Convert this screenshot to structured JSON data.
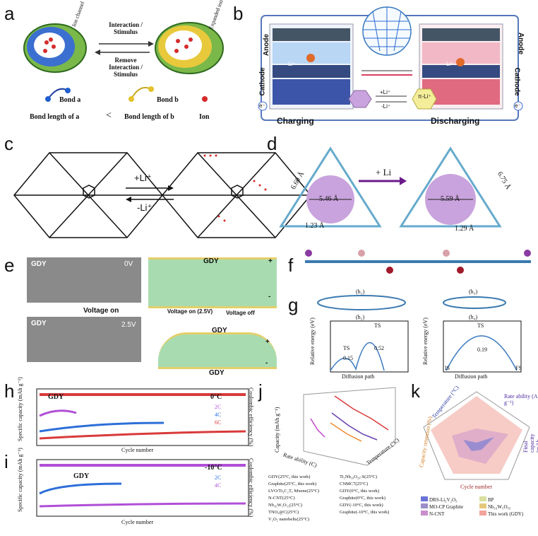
{
  "panels": {
    "a": "a",
    "b": "b",
    "c": "c",
    "d": "d",
    "e": "e",
    "f": "f",
    "g": "g",
    "h": "h",
    "i": "i",
    "j": "j",
    "k": "k"
  },
  "panel_a": {
    "ion_channel": "Ion channel",
    "expanded_channel": "Expanded ion channel",
    "forward_label": "Interaction / Stimulus",
    "reverse_label": "Remove Interaction / Stimulus",
    "bond_a": "Bond a",
    "bond_b": "Bond b",
    "bond_len_a": "Bond length of a",
    "less_than": "<",
    "bond_len_b": "Bond length of b",
    "ion": "Ion"
  },
  "panel_b": {
    "anode_left": "Anode",
    "cathode_left": "Cathode",
    "anode_right": "Anode",
    "cathode_right": "Cathode",
    "li_left": "Li⁺",
    "li_right": "Li⁺",
    "charging": "Charging",
    "discharging": "Discharging",
    "plus_li": "+Li⁺",
    "minus_li": "-Li⁺",
    "pi_li": "π-Li⁺",
    "electron": "e⁻"
  },
  "panel_c": {
    "plus": "+Li⁺",
    "minus": "-Li⁺"
  },
  "panel_d": {
    "left_pore": "5.46 Å",
    "left_edge": "6.60 Å",
    "left_bond": "1.23 Å",
    "arrow": "+ Li",
    "right_pore": "5.59 Å",
    "right_edge": "6.75 Å",
    "right_bond": "1.29 Å"
  },
  "panel_e": {
    "gdy_top": "GDY",
    "v0": "0V",
    "voltage_on": "Voltage on",
    "gdy_bottom": "GDY",
    "v25": "2.5V",
    "gdy_sch_top": "GDY",
    "plus": "+",
    "minus": "-",
    "von": "Voltage on (2.5V)",
    "voff": "Voltage off",
    "gdy_sch_b1": "GDY",
    "gdy_sch_b2": "GDY",
    "plus2": "+",
    "minus2": "-"
  },
  "panel_g": {
    "h1": "(h₁)",
    "h2": "(h₂)",
    "h3": "(h₃)",
    "h4": "(h₄)",
    "ylabel": "Relative energy (eV)",
    "xlabel": "Diffusion path",
    "ts": "TS",
    "ts2": "TS",
    "ts3": "TS",
    "v1": "0.15",
    "v2": "0.52",
    "v3": "0.19",
    "is": "IS",
    "fs": "FS"
  },
  "panel_h": {
    "ylabel": "Specific capacity (mAh g⁻¹)",
    "y2label": "Coulombic efficiency (%)",
    "xlabel": "Cycle number",
    "gdy": "GDY",
    "temp": "0°C",
    "legend": [
      "2C",
      "4C",
      "6C"
    ],
    "legend_colors": [
      "#b04fd6",
      "#2e6fd8",
      "#d93a3a"
    ]
  },
  "panel_i": {
    "ylabel": "Specific capacity (mAh g⁻¹)",
    "y2label": "Coulombic efficiency (%)",
    "xlabel": "Cycle number",
    "gdy": "GDY",
    "temp": "-10°C",
    "legend": [
      "2C",
      "4C"
    ],
    "legend_colors": [
      "#2e6fd8",
      "#b04fd6"
    ]
  },
  "panel_j": {
    "zlabel": "Capacity (mAh g⁻¹)",
    "xlabel": "Rate ability (C)",
    "ylabel": "Temperature (°C)",
    "legend": [
      {
        "label": "GDY(25°C, this work)",
        "color": "#d93a3a"
      },
      {
        "label": "Ti₂Nb₁₀O₂₉-S(25°C)",
        "color": "#8b4a2a"
      },
      {
        "label": "Graphite(25°C, this work)",
        "color": "#c048c8"
      },
      {
        "label": "CNMC7(25°C)",
        "color": "#cf7fbf"
      },
      {
        "label": "LVO/Ti₃C₂Tₓ Mxene(25°C)",
        "color": "#e0b040"
      },
      {
        "label": "GDY(0°C, this work)",
        "color": "#6a3fb0"
      },
      {
        "label": "N-CNT(25°C)",
        "color": "#2a6fd0"
      },
      {
        "label": "Graphite(0°C, this work)",
        "color": "#3a3aa0"
      },
      {
        "label": "Nb₁₆W₅O₅₅(25°C)",
        "color": "#9ad0f0"
      },
      {
        "label": "GDY(-10°C, this work)",
        "color": "#f08a30"
      },
      {
        "label": "TNOₓ@C(25°C)",
        "color": "#2a9a40"
      },
      {
        "label": "Graphite(-10°C, this work)",
        "color": "#b0a030"
      },
      {
        "label": "V₂O₅ nanobelts(25°C)",
        "color": "#4ac0d0"
      }
    ]
  },
  "panel_k": {
    "axes": [
      "Rate ability (A g⁻¹)",
      "Final capacity (mAh g⁻¹)",
      "Cycle number",
      "Capacity retention (%)",
      "Temperature (°C)"
    ],
    "legend": [
      {
        "label": "DRS-Li₃V₂O₅",
        "color": "#6b74d6"
      },
      {
        "label": "BP",
        "color": "#d8e0a0"
      },
      {
        "label": "MO-CP Graphite",
        "color": "#9b8fc8"
      },
      {
        "label": "Nb₁₆W₅O₅₅",
        "color": "#e4c97a"
      },
      {
        "label": "N-CNT",
        "color": "#c98fcc"
      },
      {
        "label": "This work (GDY)",
        "color": "#f2a39c"
      }
    ]
  }
}
